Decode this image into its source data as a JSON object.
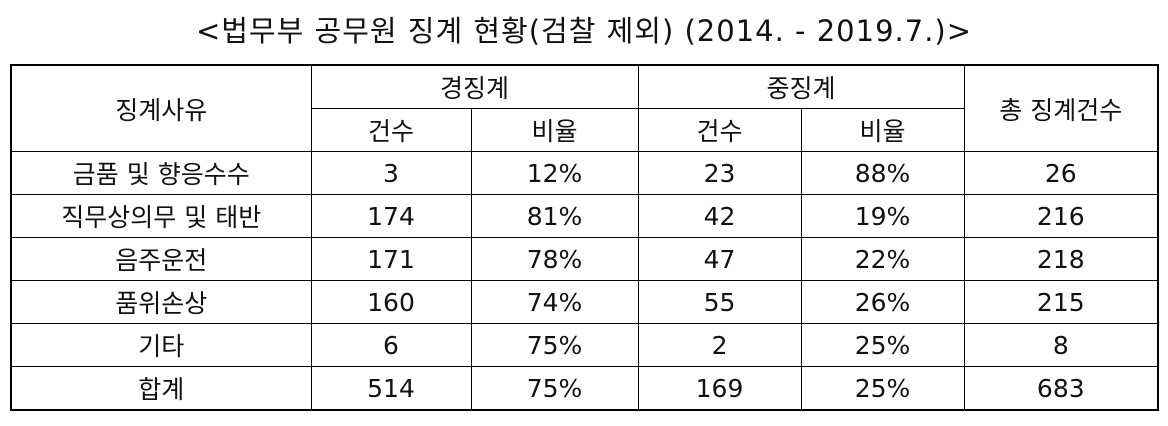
{
  "title": "<법무부 공무원 징계 현황(검찰 제외) (2014. - 2019.7.)>",
  "table": {
    "header": {
      "reason": "징계사유",
      "groups": [
        "경징계",
        "중징계"
      ],
      "sub": [
        "건수",
        "비율",
        "건수",
        "비율"
      ],
      "total": "총 징계건수"
    },
    "rows": [
      [
        "금품 및 향응수수",
        "3",
        "12%",
        "23",
        "88%",
        "26"
      ],
      [
        "직무상의무 및 태반",
        "174",
        "81%",
        "42",
        "19%",
        "216"
      ],
      [
        "음주운전",
        "171",
        "78%",
        "47",
        "22%",
        "218"
      ],
      [
        "품위손상",
        "160",
        "74%",
        "55",
        "26%",
        "215"
      ],
      [
        "기타",
        "6",
        "75%",
        "2",
        "25%",
        "8"
      ],
      [
        "합계",
        "514",
        "75%",
        "169",
        "25%",
        "683"
      ]
    ]
  }
}
